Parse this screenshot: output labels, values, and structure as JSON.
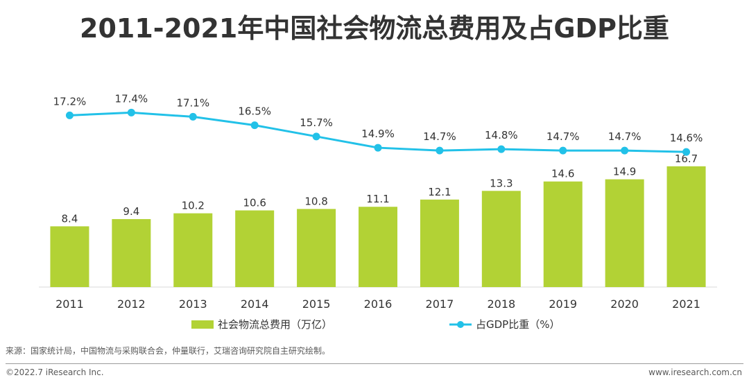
{
  "title": "2011-2021年中国社会物流总费用及占GDP比重",
  "chart_data": {
    "type": "bar",
    "categories": [
      "2011",
      "2012",
      "2013",
      "2014",
      "2015",
      "2016",
      "2017",
      "2018",
      "2019",
      "2020",
      "2021"
    ],
    "series": [
      {
        "name": "社会物流总费用（万亿）",
        "type": "bar",
        "color": "#b2d235",
        "values": [
          8.4,
          9.4,
          10.2,
          10.6,
          10.8,
          11.1,
          12.1,
          13.3,
          14.6,
          14.9,
          16.7
        ],
        "labels": [
          "8.4",
          "9.4",
          "10.2",
          "10.6",
          "10.8",
          "11.1",
          "12.1",
          "13.3",
          "14.6",
          "14.9",
          "16.7"
        ]
      },
      {
        "name": "占GDP比重（%）",
        "type": "line",
        "color": "#22c1e8",
        "values": [
          17.2,
          17.4,
          17.1,
          16.5,
          15.7,
          14.9,
          14.7,
          14.8,
          14.7,
          14.7,
          14.6
        ],
        "labels": [
          "17.2%",
          "17.4%",
          "17.1%",
          "16.5%",
          "15.7%",
          "14.9%",
          "14.7%",
          "14.8%",
          "14.7%",
          "14.7%",
          "14.6%"
        ]
      }
    ],
    "bar_ylim": [
      0,
      19
    ],
    "line_ylim": [
      5,
      18.5
    ],
    "legend_position": "bottom"
  },
  "footer": {
    "source": "来源：国家统计局，中国物流与采购联合会，仲量联行，艾瑞咨询研究院自主研究绘制。",
    "copyright": "©2022.7 iResearch Inc.",
    "website": "www.iresearch.com.cn"
  }
}
